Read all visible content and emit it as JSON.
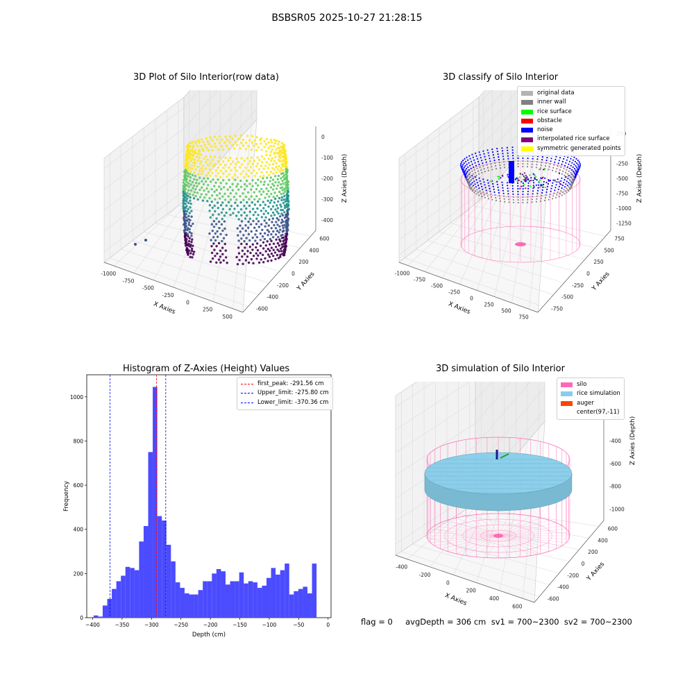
{
  "figure": {
    "suptitle": "BSBSR05 2025-10-27 21:28:15",
    "footer": "flag = 0     avgDepth = 306 cm  sv1 = 700~2300  sv2 = 700~2300"
  },
  "chart_data": [
    {
      "type": "scatter",
      "subtype": "3d",
      "title": "3D Plot of Silo Interior(row data)",
      "xlabel": "X Axies",
      "ylabel": "Y Axies",
      "zlabel": "Z Axies (Depth)",
      "x_ticks": [
        "-1000",
        "-750",
        "-500",
        "-250",
        "0",
        "250",
        "500"
      ],
      "y_ticks": [
        "-600",
        "-400",
        "-200",
        "0",
        "200",
        "400",
        "600"
      ],
      "z_ticks": [
        "0",
        "-100",
        "-200",
        "-300",
        "-400"
      ],
      "colormap": "viridis",
      "colors": [
        "#fde725",
        "#5ec962",
        "#21918c",
        "#3b528b",
        "#440154"
      ]
    },
    {
      "type": "scatter",
      "subtype": "3d",
      "title": "3D classify of Silo Interior",
      "xlabel": "X Axies",
      "ylabel": "Y Axies",
      "zlabel": "Z Axies (Depth)",
      "x_ticks": [
        "-1000",
        "-750",
        "-500",
        "-250",
        "0",
        "250",
        "500",
        "750"
      ],
      "y_ticks": [
        "-750",
        "-500",
        "-250",
        "0",
        "250",
        "500",
        "750"
      ],
      "z_ticks": [
        "250",
        "0",
        "-250",
        "-500",
        "-750",
        "-1000",
        "-1250"
      ],
      "legend": [
        {
          "label": "original data",
          "color": "#b3b3b3"
        },
        {
          "label": "inner wall",
          "color": "#808080"
        },
        {
          "label": "rice surface",
          "color": "#00ff00"
        },
        {
          "label": "obstacle",
          "color": "#ff0000"
        },
        {
          "label": "noise",
          "color": "#0000ff"
        },
        {
          "label": "interpolated rice surface",
          "color": "#800080"
        },
        {
          "label": "symmetric generated points",
          "color": "#ffff00"
        }
      ],
      "silo_wire_color": "#ff69b4"
    },
    {
      "type": "bar",
      "subtype": "histogram",
      "title": "Histogram of Z-Axies (Height) Values",
      "xlabel": "Depth (cm)",
      "ylabel": "Frequency",
      "xlim": [
        -410,
        5
      ],
      "ylim": [
        0,
        1100
      ],
      "x_ticks": [
        -400,
        -350,
        -300,
        -250,
        -200,
        -150,
        -100,
        -50,
        0
      ],
      "y_ticks": [
        0,
        200,
        400,
        600,
        800,
        1000
      ],
      "bin_width": 7.73,
      "bin_starts_from": -398.4,
      "values": [
        10,
        5,
        55,
        85,
        130,
        165,
        190,
        230,
        225,
        215,
        345,
        415,
        750,
        1045,
        460,
        440,
        330,
        255,
        160,
        135,
        110,
        105,
        105,
        125,
        165,
        165,
        200,
        220,
        210,
        150,
        165,
        165,
        205,
        155,
        165,
        160,
        135,
        145,
        180,
        225,
        195,
        215,
        245,
        105,
        120,
        130,
        140,
        110,
        245
      ],
      "bar_color": "#4b4bff",
      "lines": [
        {
          "label": "first_peak: -291.56 cm",
          "x": -291.56,
          "color": "#ff0000"
        },
        {
          "label": "Upper_limit: -275.80 cm",
          "x": -275.8,
          "color": "#0000ff"
        },
        {
          "label": "Lower_limit: -370.36 cm",
          "x": -370.36,
          "color": "#0000ff"
        }
      ]
    },
    {
      "type": "scatter",
      "subtype": "3d-surface",
      "title": "3D simulation of Silo Interior",
      "xlabel": "X Axies",
      "ylabel": "Y Axies",
      "zlabel": "Z Axies (Depth)",
      "x_ticks": [
        "-400",
        "-200",
        "0",
        "200",
        "400",
        "600"
      ],
      "y_ticks": [
        "-600",
        "-400",
        "-200",
        "0",
        "200",
        "400",
        "600"
      ],
      "z_ticks": [
        "200",
        "0",
        "-200",
        "-400",
        "-600",
        "-800",
        "-1000"
      ],
      "legend": [
        {
          "label": "silo",
          "color": "#ff69b4"
        },
        {
          "label": "rice simulation",
          "color": "#87ceeb"
        },
        {
          "label": "auger",
          "color": "#ff4500"
        },
        {
          "label": "center(97,-11)",
          "color": ""
        }
      ]
    }
  ]
}
